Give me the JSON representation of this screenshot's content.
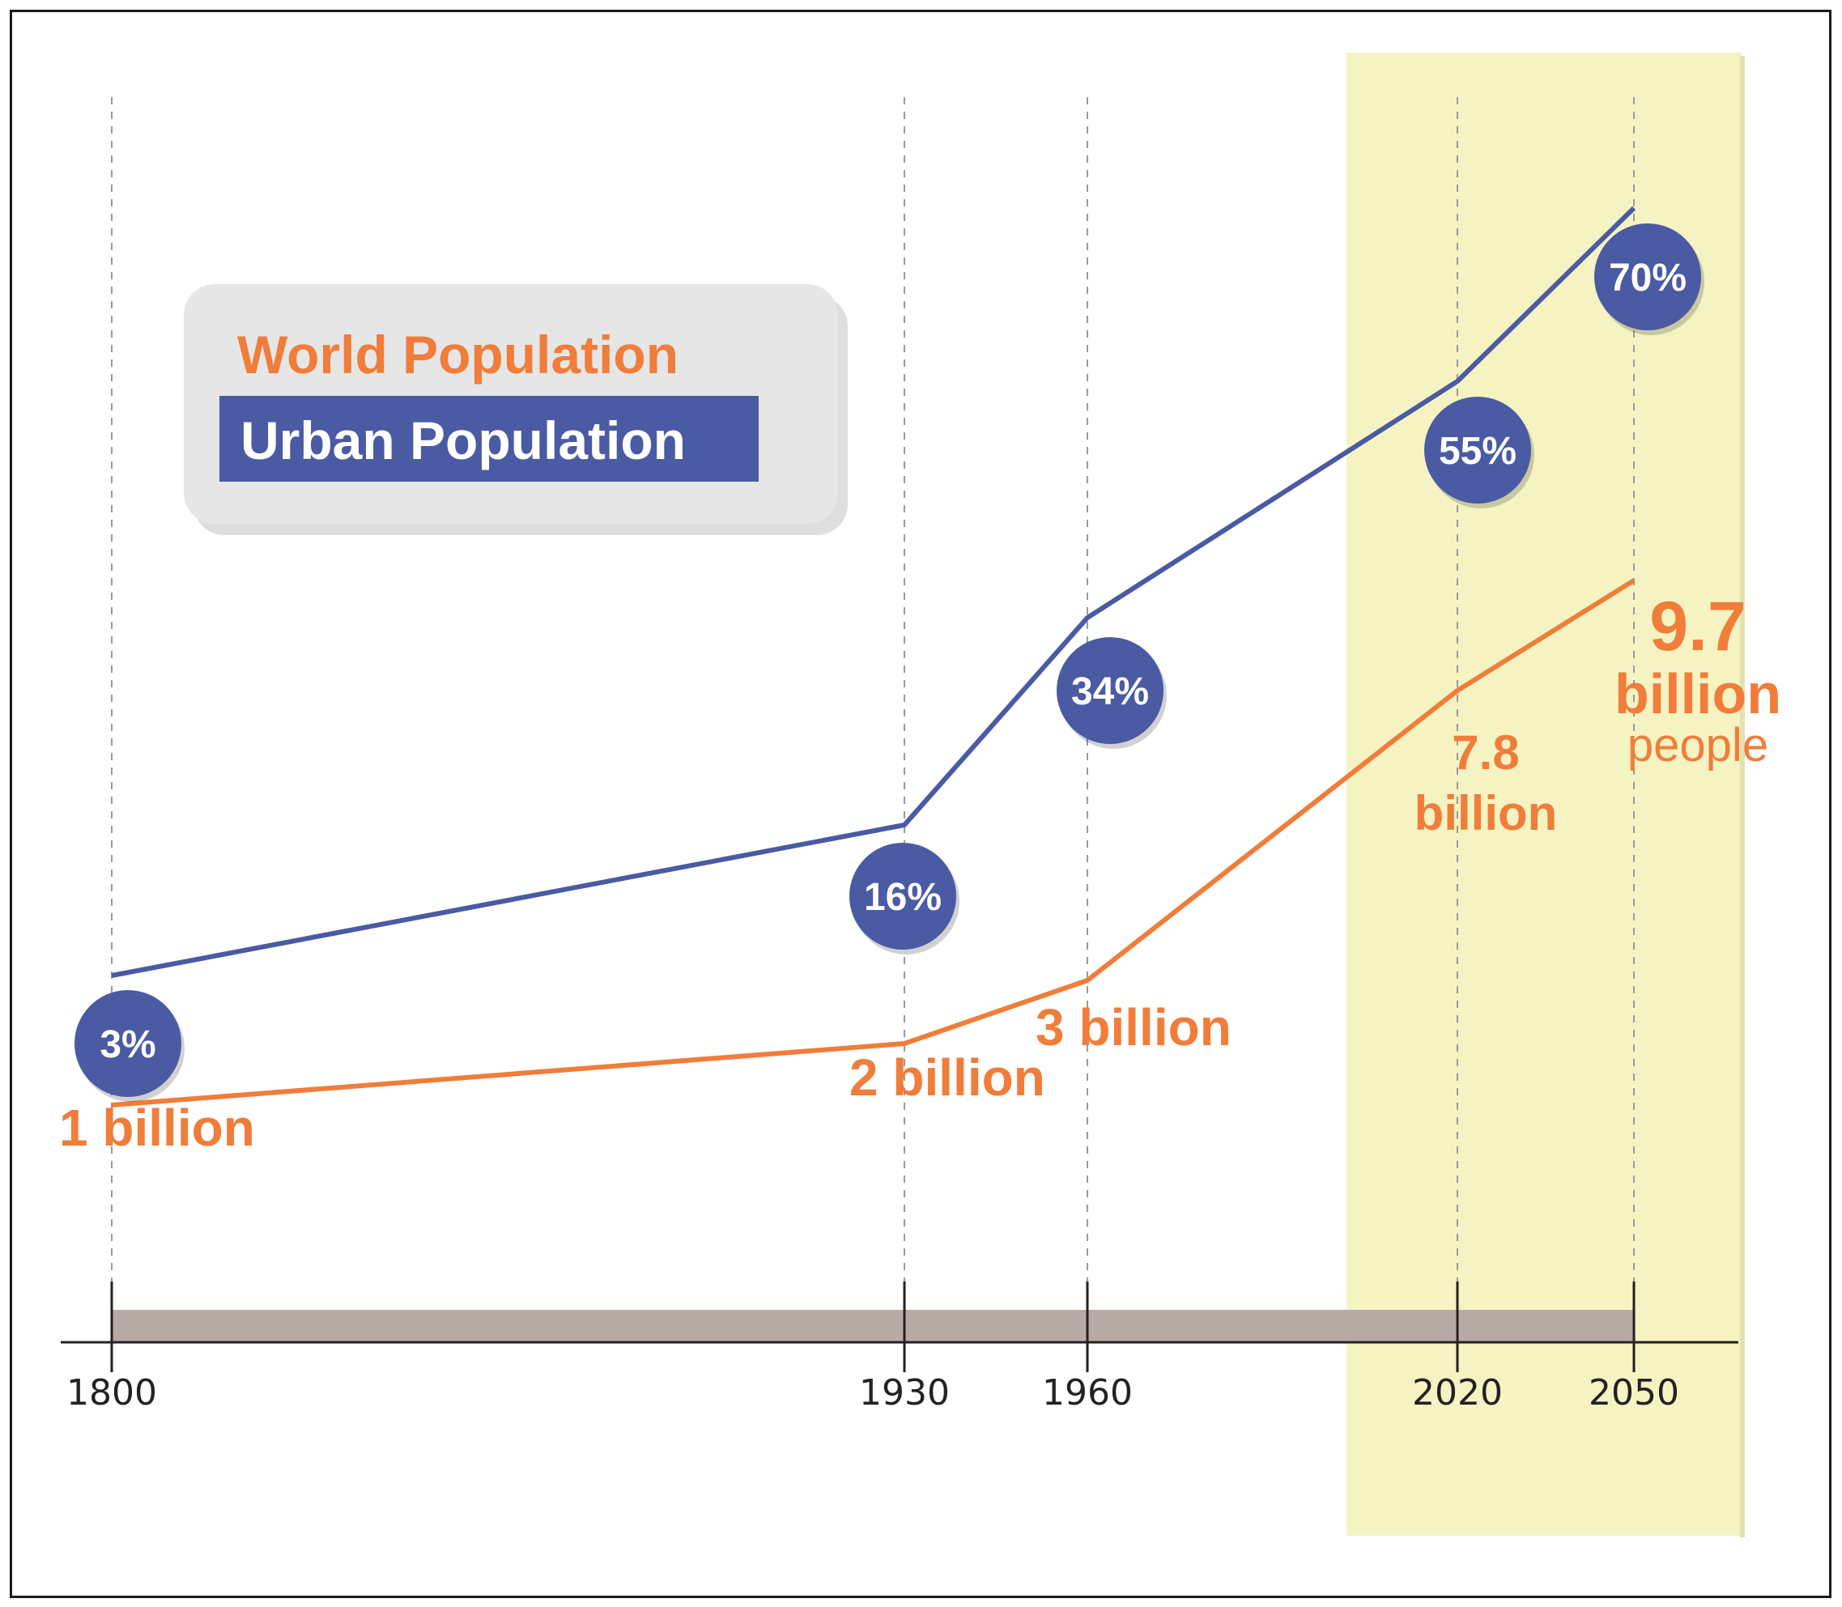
{
  "chart_data": {
    "type": "line",
    "title": "",
    "xlabel": "",
    "ylabel": "",
    "x": [
      1800,
      1930,
      1960,
      2020,
      2050
    ],
    "highlight_range": [
      2012,
      2068
    ],
    "legend": {
      "placement": "top-left",
      "entries": [
        "World Population",
        "Urban Population"
      ]
    },
    "series": [
      {
        "name": "Urban Population",
        "unit": "%",
        "values": [
          3,
          16,
          34,
          55,
          70
        ],
        "labels": [
          "3%",
          "16%",
          "34%",
          "55%",
          "70%"
        ]
      },
      {
        "name": "World Population",
        "unit": "billion",
        "values": [
          1,
          2,
          3,
          7.8,
          9.7
        ],
        "labels": [
          "1 billion",
          "2 billion",
          "3 billion",
          "7.8 billion",
          "9.7 billion people"
        ]
      }
    ],
    "annotations": {
      "world_2020_line1": "7.8",
      "world_2020_line2": "billion",
      "world_2050_line1": "9.7",
      "world_2050_line2": "billion",
      "world_2050_line3": "people"
    },
    "tick_labels": [
      "1800",
      "1930",
      "1960",
      "2020",
      "2050"
    ]
  },
  "colors": {
    "world": "#f07d3a",
    "urban": "#4a5aa3",
    "highlight": "#f5f3c2",
    "axis_bar": "#b5aaa4",
    "legend_bg": "#e6e6e6",
    "grid": "#9a9a9a"
  }
}
